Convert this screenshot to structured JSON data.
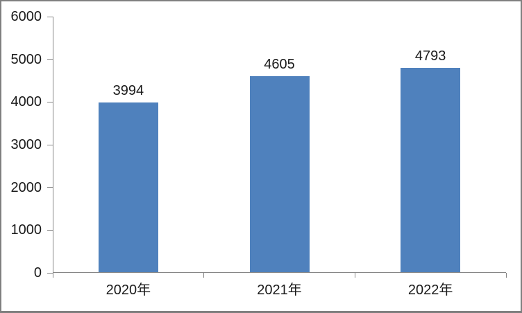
{
  "chart_data": {
    "type": "bar",
    "title": "",
    "xlabel": "",
    "ylabel": "",
    "categories": [
      "2020年",
      "2021年",
      "2022年"
    ],
    "values": [
      3994,
      4605,
      4793
    ],
    "data_labels": [
      "3994",
      "4605",
      "4793"
    ],
    "ylim": [
      0,
      6000
    ],
    "ytick_step": 1000,
    "ytick_labels": [
      "0",
      "1000",
      "2000",
      "3000",
      "4000",
      "5000",
      "6000"
    ],
    "grid": "off",
    "legend_position": "none",
    "data_labels_visible": true
  },
  "colors": {
    "bar": "#4F81BD",
    "axis": "#868686",
    "text": "#1a1a1a",
    "frame_border": "#7f7f7f",
    "background": "#ffffff"
  }
}
